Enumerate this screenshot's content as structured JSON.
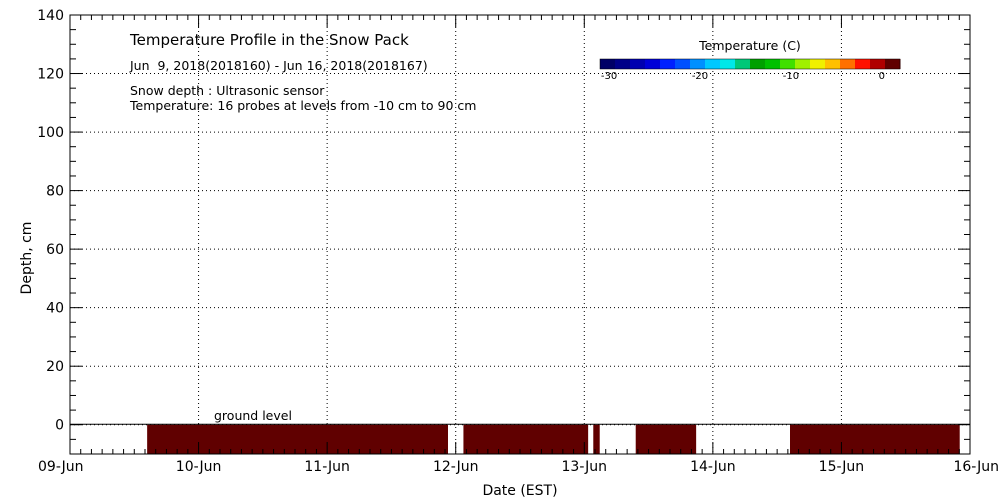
{
  "chart_data": {
    "type": "heatmap",
    "title": "Temperature Profile in the Snow Pack",
    "subtitle": "Jun  9, 2018(2018160) - Jun 16, 2018(2018167)",
    "notes": [
      "Snow depth : Ultrasonic sensor",
      "Temperature: 16 probes at levels from -10 cm to 90 cm"
    ],
    "xlabel": "Date (EST)",
    "ylabel": "Depth, cm",
    "x_ticks": [
      "09-Jun",
      "10-Jun",
      "11-Jun",
      "12-Jun",
      "13-Jun",
      "14-Jun",
      "15-Jun",
      "16-Jun"
    ],
    "xlim_days": [
      0,
      7
    ],
    "ylim": [
      -10,
      140
    ],
    "y_ticks": [
      0,
      20,
      40,
      60,
      80,
      100,
      120,
      140
    ],
    "grid": true,
    "ground_level_label": "ground level",
    "ground_level_depth": 0,
    "colorbar": {
      "title": "Temperature (C)",
      "range": [
        -31,
        2
      ],
      "ticks": [
        -30,
        -20,
        -10,
        0
      ],
      "colors": [
        "#000066",
        "#000088",
        "#0000b0",
        "#0000d8",
        "#0020ff",
        "#0050ff",
        "#0090ff",
        "#00c8ff",
        "#00e8e8",
        "#00c878",
        "#00a000",
        "#00c000",
        "#40e000",
        "#a0f000",
        "#f0f000",
        "#ffc000",
        "#ff7000",
        "#ff1000",
        "#b00000",
        "#600000"
      ]
    },
    "temperature_segments": [
      {
        "start_day": 0.6,
        "end_day": 2.94,
        "depth_top": 0,
        "depth_bottom": -10,
        "temp_c": 2
      },
      {
        "start_day": 3.06,
        "end_day": 4.03,
        "depth_top": 0,
        "depth_bottom": -10,
        "temp_c": 2
      },
      {
        "start_day": 4.07,
        "end_day": 4.12,
        "depth_top": 0,
        "depth_bottom": -10,
        "temp_c": 2
      },
      {
        "start_day": 4.4,
        "end_day": 4.87,
        "depth_top": 0,
        "depth_bottom": -10,
        "temp_c": 2
      },
      {
        "start_day": 5.6,
        "end_day": 6.92,
        "depth_top": 0,
        "depth_bottom": -10,
        "temp_c": 2
      }
    ]
  }
}
